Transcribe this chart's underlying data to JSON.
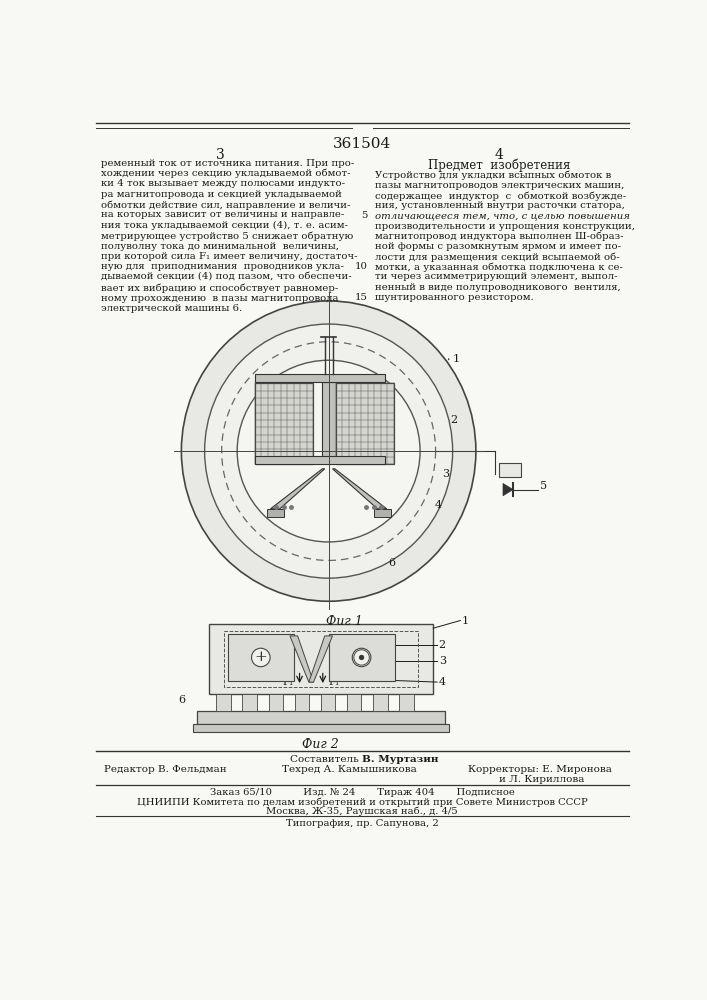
{
  "patent_number": "361504",
  "page_numbers": [
    "3",
    "4"
  ],
  "left_column_text": [
    "ременный ток от источника питания. При про-",
    "хождении через секцию укладываемой обмот-",
    "ки 4 ток вызывает между полюсами индукто-",
    "ра магнитопровода и секцией укладываемой",
    "обмотки действие сил, направление и величи-",
    "на которых зависит от величины и направле-",
    "ния тока укладываемой секции (4), т. е. асим-",
    "метрирующее устройство 5 снижает обратную",
    "полуволну тока до минимальной  величины,",
    "при которой сила F₁ имеет величину, достаточ-",
    "ную для  приподнимания  проводников укла-",
    "дываемой секции (4) под пазом, что обеспечи-",
    "вает их вибрацию и способствует равномер-",
    "ному прохождению  в пазы магнитопровода",
    "электрической машины 6."
  ],
  "right_column_header": "Предмет  изобретения",
  "right_column_text": [
    "Устройство для укладки всыпных обмоток в",
    "пазы магнитопроводов электрических машин,",
    "содержащее  индуктор  с  обмоткой возбужде-",
    "ния, установленный внутри расточки статора,",
    "отличающееся тем, что, с целью повышения",
    "производительности и упрощения конструкции,",
    "магнитопровод индуктора выполнен Ш-образ-",
    "ной формы с разомкнутым ярмом и имеет по-",
    "лости для размещения секций всыпаемой об-",
    "мотки, а указанная обмотка подключена к се-",
    "ти через асимметрирующий элемент, выпол-",
    "ненный в виде полупроводникового  вентиля,",
    "шунтированного резистором."
  ],
  "fig1_label": "Фиг 1",
  "fig2_label": "Фиг 2",
  "staff_compiler_label": "Составитель",
  "staff_compiler_name": "В. Муртазин",
  "staff_editor_label": "Редактор",
  "staff_editor_name": "В. Фельдман",
  "staff_techred_label": "Техред",
  "staff_techred_name": "А. Камышникова",
  "staff_correctors_label": "Корректоры:",
  "staff_corrector1": "Е. Миронова",
  "staff_corrector2": "и Л. Кириллова",
  "bottom_line1": "Заказ 65/10          Изд. № 24       Тираж 404       Подписное",
  "bottom_line2": "ЦНИИПИ Комитета по делам изобретений и открытий при Совете Министров СССР",
  "bottom_line3": "Москва, Ж-35, Раушская наб., д. 4/5",
  "bottom_line4": "Типография, пр. Сапунова, 2",
  "bg_color": "#f8f8f5",
  "text_color": "#1a1a1a",
  "line_color": "#333333"
}
